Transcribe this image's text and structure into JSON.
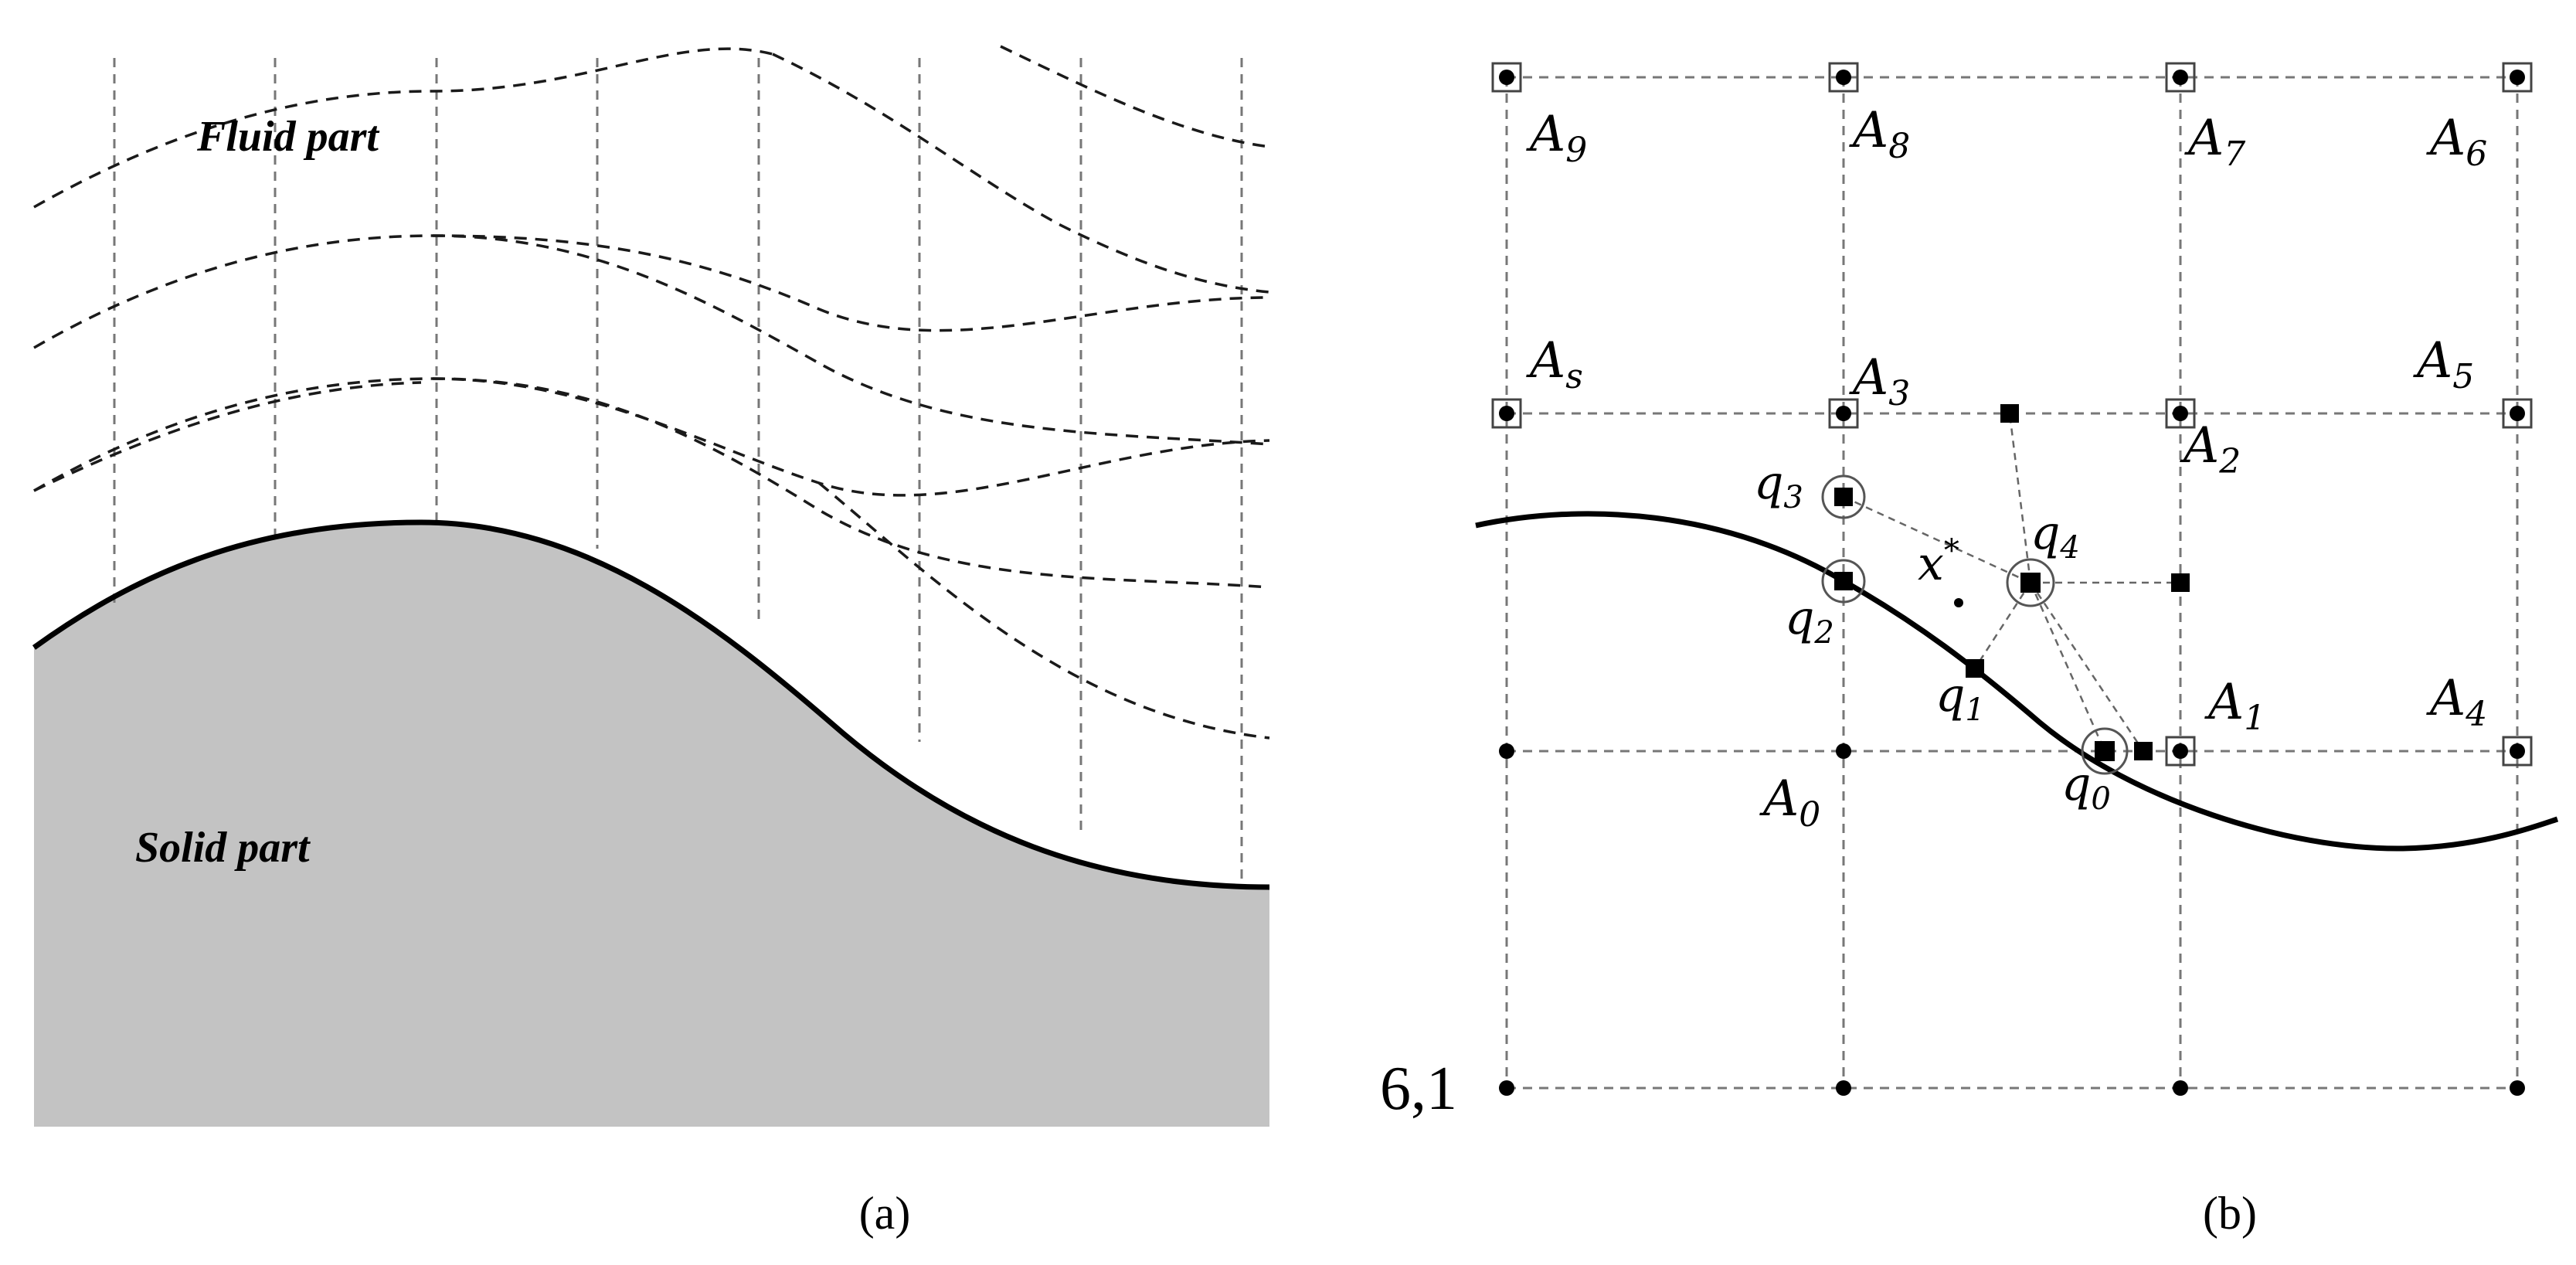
{
  "panel_a": {
    "fluid_label": "Fluid part",
    "solid_label": "Solid part",
    "caption": "(a)",
    "colors": {
      "solid_fill": "#c3c3c3",
      "interface": "#000000"
    }
  },
  "panel_b": {
    "caption": "(b)",
    "corner_label": "6,1",
    "nodes": {
      "A9": {
        "base": "A",
        "sub": "9"
      },
      "A8": {
        "base": "A",
        "sub": "8"
      },
      "A7": {
        "base": "A",
        "sub": "7"
      },
      "A6": {
        "base": "A",
        "sub": "6"
      },
      "As": {
        "base": "A",
        "sub": "s"
      },
      "A3": {
        "base": "A",
        "sub": "3"
      },
      "A2": {
        "base": "A",
        "sub": "2"
      },
      "A5": {
        "base": "A",
        "sub": "5"
      },
      "A1": {
        "base": "A",
        "sub": "1"
      },
      "A4": {
        "base": "A",
        "sub": "4"
      },
      "A0": {
        "base": "A",
        "sub": "0"
      }
    },
    "points": {
      "q0": {
        "base": "q",
        "sub": "0"
      },
      "q1": {
        "base": "q",
        "sub": "1"
      },
      "q2": {
        "base": "q",
        "sub": "2"
      },
      "q3": {
        "base": "q",
        "sub": "3"
      },
      "q4": {
        "base": "q",
        "sub": "4"
      },
      "xstar": {
        "base": "x",
        "sup": "*"
      }
    }
  }
}
